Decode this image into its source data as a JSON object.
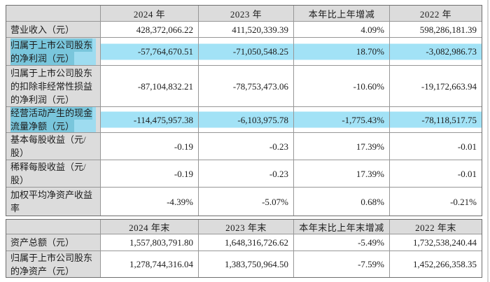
{
  "colors": {
    "header_bg": "#dcdcdc",
    "label_bg": "#dcdcdc",
    "highlight_band": "#a2e2f6",
    "highlight_text": "#79c6dc",
    "border": "#979797",
    "outer_border": "#6e6e6e",
    "text": "#1c1c1c"
  },
  "table1": {
    "headers": [
      "",
      "2024 年",
      "2023 年",
      "本年比上年增减",
      "2022 年"
    ],
    "rows": [
      {
        "label": "营业收入（元）",
        "values": [
          "428,372,066.22",
          "411,520,339.39",
          "4.09%",
          "598,286,181.39"
        ],
        "highlight": false
      },
      {
        "label": "归属于上市公司股东的净利润（元）",
        "values": [
          "-57,764,670.51",
          "-71,050,548.25",
          "18.70%",
          "-3,082,986.73"
        ],
        "highlight": true
      },
      {
        "label": "归属于上市公司股东的扣除非经常性损益的净利润（元）",
        "values": [
          "-87,104,832.21",
          "-78,753,473.06",
          "-10.60%",
          "-19,172,663.94"
        ],
        "highlight": false
      },
      {
        "label": "经营活动产生的现金流量净额（元）",
        "values": [
          "-114,475,957.38",
          "-6,103,975.78",
          "-1,775.43%",
          "-78,118,517.75"
        ],
        "highlight": true
      },
      {
        "label": "基本每股收益（元/股）",
        "values": [
          "-0.19",
          "-0.23",
          "17.39%",
          "-0.01"
        ],
        "highlight": false
      },
      {
        "label": "稀释每股收益（元/股）",
        "values": [
          "-0.19",
          "-0.23",
          "17.39%",
          "-0.01"
        ],
        "highlight": false
      },
      {
        "label": "加权平均净资产收益率",
        "values": [
          "-4.39%",
          "-5.07%",
          "0.68%",
          "-0.21%"
        ],
        "highlight": false
      }
    ]
  },
  "table2": {
    "headers": [
      "",
      "2024 年末",
      "2023 年末",
      "本年末比上年末增减",
      "2022 年末"
    ],
    "rows": [
      {
        "label": "资产总额（元）",
        "values": [
          "1,557,803,791.80",
          "1,648,316,726.62",
          "-5.49%",
          "1,732,538,240.44"
        ],
        "highlight": false
      },
      {
        "label": "归属于上市公司股东的净资产（元）",
        "values": [
          "1,278,744,316.04",
          "1,383,750,964.50",
          "-7.59%",
          "1,452,266,358.35"
        ],
        "highlight": false
      }
    ]
  }
}
